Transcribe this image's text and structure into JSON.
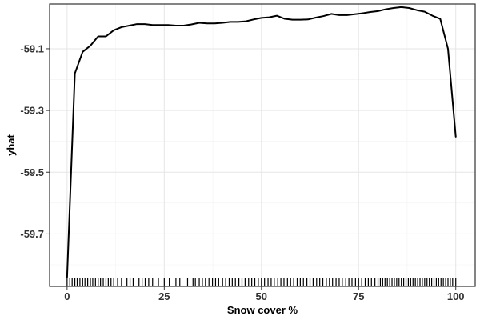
{
  "chart_data": {
    "type": "line",
    "title": "",
    "xlabel": "Snow cover %",
    "ylabel": "yhat",
    "xlim": [
      -4.5,
      105
    ],
    "ylim": [
      -59.87,
      -58.955
    ],
    "x_ticks": [
      0,
      25,
      50,
      75,
      100
    ],
    "x_tick_labels": [
      "0",
      "25",
      "50",
      "75",
      "100"
    ],
    "y_ticks": [
      -59.1,
      -59.3,
      -59.5,
      -59.7
    ],
    "y_tick_labels": [
      "-59.1",
      "-59.3",
      "-59.5",
      "-59.7"
    ],
    "grid": true,
    "legend": "none",
    "line_color": "#000000",
    "series": [
      {
        "x": [
          0,
          2,
          4,
          6,
          8,
          10,
          12,
          14,
          16,
          18,
          20,
          22,
          24,
          26,
          28,
          30,
          32,
          34,
          36,
          38,
          40,
          42,
          44,
          46,
          48,
          50,
          52,
          54,
          56,
          58,
          60,
          62,
          64,
          66,
          68,
          70,
          72,
          74,
          76,
          78,
          80,
          82,
          84,
          86,
          88,
          90,
          92,
          94,
          96,
          98,
          100
        ],
        "y": [
          -59.84,
          -59.18,
          -59.11,
          -59.09,
          -59.06,
          -59.06,
          -59.04,
          -59.03,
          -59.025,
          -59.02,
          -59.02,
          -59.023,
          -59.023,
          -59.023,
          -59.025,
          -59.025,
          -59.021,
          -59.016,
          -59.018,
          -59.018,
          -59.016,
          -59.013,
          -59.013,
          -59.011,
          -59.005,
          -59.0,
          -58.998,
          -58.993,
          -59.003,
          -59.006,
          -59.006,
          -59.005,
          -58.999,
          -58.994,
          -58.987,
          -58.991,
          -58.991,
          -58.988,
          -58.985,
          -58.981,
          -58.978,
          -58.972,
          -58.968,
          -58.965,
          -58.968,
          -58.975,
          -58.98,
          -58.993,
          -59.003,
          -59.1,
          -59.385
        ]
      }
    ],
    "rug_x": [
      0,
      0.7,
      1.3,
      2,
      2.6,
      3.3,
      4,
      4.6,
      5.3,
      6,
      6.6,
      7.3,
      8,
      8.6,
      9.3,
      10,
      10.6,
      11.3,
      12,
      13,
      14,
      15.4,
      16.2,
      17,
      18.5,
      19.3,
      20.1,
      21,
      22,
      23.5,
      25,
      26.3,
      28,
      29,
      31,
      32.4,
      33,
      34,
      34.8,
      35.6,
      36.5,
      37.4,
      38.2,
      39,
      40,
      40.8,
      41.7,
      42.5,
      43.3,
      44.2,
      45,
      45.8,
      46.7,
      47.5,
      48.3,
      49.2,
      50,
      50.8,
      51.7,
      52.5,
      53.3,
      54.2,
      55,
      55.8,
      56.7,
      57.5,
      58.3,
      59.2,
      60,
      60.8,
      61.7,
      62.5,
      63.3,
      64.2,
      65,
      65.8,
      66.7,
      67.5,
      68.3,
      69.2,
      70,
      70.8,
      71.7,
      72.5,
      73.3,
      74.2,
      75,
      75.8,
      76.7,
      77.5,
      78.3,
      79.2,
      80,
      80.6,
      81.2,
      81.8,
      82.4,
      83,
      83.6,
      84.2,
      84.8,
      85.4,
      86,
      86.6,
      87.2,
      87.8,
      88.4,
      89,
      89.6,
      90.2,
      90.8,
      91.4,
      92,
      92.6,
      93.2,
      93.8,
      94.4,
      95,
      95.6,
      96.2,
      96.8,
      97.4,
      98,
      98.6,
      99.2,
      100
    ]
  }
}
